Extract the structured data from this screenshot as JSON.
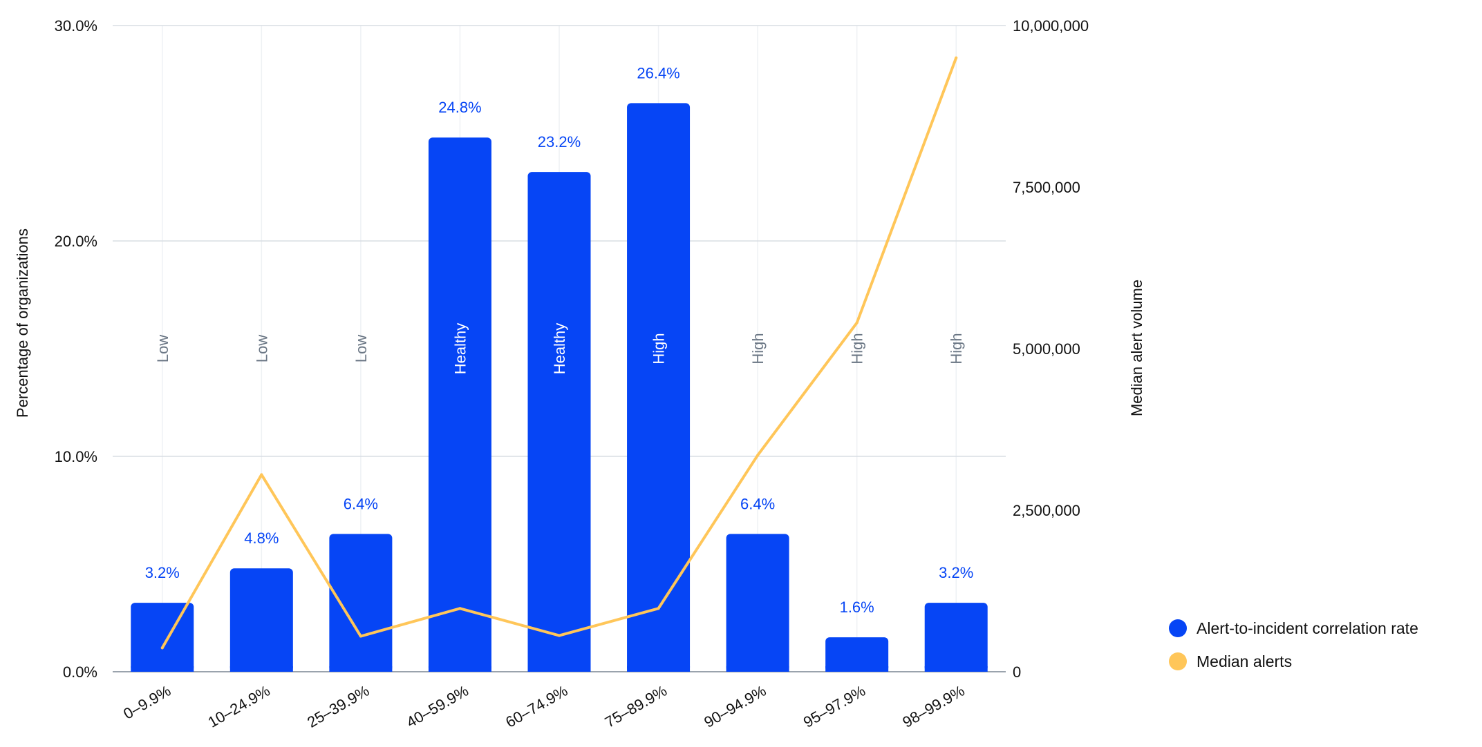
{
  "chart_data": {
    "type": "bar",
    "categories": [
      "0–9.9%",
      "10–24.9%",
      "25–39.9%",
      "40–59.9%",
      "60–74.9%",
      "75–89.9%",
      "90–94.9%",
      "95–97.9%",
      "98–99.9%"
    ],
    "series": [
      {
        "name": "Alert-to-incident correlation rate",
        "type": "bar",
        "axis": "left",
        "values": [
          3.2,
          4.8,
          6.4,
          24.8,
          23.2,
          26.4,
          6.4,
          1.6,
          3.2
        ],
        "labels": [
          "3.2%",
          "4.8%",
          "6.4%",
          "24.8%",
          "23.2%",
          "26.4%",
          "6.4%",
          "1.6%",
          "3.2%"
        ],
        "color": "#0645f5"
      },
      {
        "name": "Median alerts",
        "type": "line",
        "axis": "right",
        "values": [
          370000,
          3050000,
          550000,
          980000,
          560000,
          980000,
          3350000,
          5400000,
          9500000
        ],
        "color": "#ffc659"
      }
    ],
    "bar_categories": [
      "Low",
      "Low",
      "Low",
      "Healthy",
      "Healthy",
      "High",
      "High",
      "High",
      "High"
    ],
    "y_left": {
      "label": "Percentage of organizations",
      "range": [
        0,
        30
      ],
      "ticks": [
        0,
        10,
        20,
        30
      ],
      "tick_labels": [
        "0.0%",
        "10.0%",
        "20.0%",
        "30.0%"
      ]
    },
    "y_right": {
      "label": "Median alert volume",
      "range": [
        0,
        10000000
      ],
      "ticks": [
        0,
        2500000,
        5000000,
        7500000,
        10000000
      ],
      "tick_labels": [
        "0",
        "2,500,000",
        "5,000,000",
        "7,500,000",
        "10,000,000"
      ]
    },
    "grid": true,
    "legend_position": "bottom-right",
    "colors": {
      "bar": "#0645f5",
      "line": "#ffc659",
      "grid": "#d8dde3",
      "category_label_outside": "#6b7785",
      "category_label_inside": "#ffffff"
    }
  }
}
